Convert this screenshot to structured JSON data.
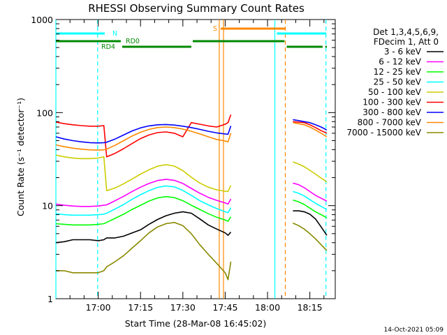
{
  "chart_data": {
    "type": "line",
    "title": "RHESSI Observing Summary Count Rates",
    "xlabel": "Start Time (28-Mar-08 16:45:02)",
    "ylabel": "Count Rate (s⁻¹ detector⁻¹)",
    "xlim_minutes": [
      0,
      99
    ],
    "ylim": [
      1,
      1000
    ],
    "y_scale": "log",
    "grid": false,
    "y_ticks": [
      {
        "value": 1,
        "label": "1"
      },
      {
        "value": 10,
        "label": "10"
      },
      {
        "value": 100,
        "label": "100"
      },
      {
        "value": 1000,
        "label": "1000"
      }
    ],
    "x_ticks": [
      {
        "minute": 15,
        "label": "17:00"
      },
      {
        "minute": 30,
        "label": "17:15"
      },
      {
        "minute": 45,
        "label": "17:30"
      },
      {
        "minute": 60,
        "label": "17:45"
      },
      {
        "minute": 75,
        "label": "18:00"
      },
      {
        "minute": 90,
        "label": "18:15"
      }
    ],
    "legend_placement": "right",
    "legend_header": [
      "Det 1,3,4,5,6,9,",
      "FDecim 1, Att 0"
    ],
    "series": [
      {
        "name": "3 - 6 keV",
        "color": "#000000",
        "values": [
          [
            0,
            4
          ],
          [
            3,
            4.1
          ],
          [
            6,
            4.3
          ],
          [
            9,
            4.3
          ],
          [
            12,
            4.3
          ],
          [
            15,
            4.2
          ],
          [
            17,
            4.3
          ],
          [
            18,
            4.5
          ],
          [
            21,
            4.5
          ],
          [
            24,
            4.7
          ],
          [
            27,
            5.1
          ],
          [
            30,
            5.5
          ],
          [
            33,
            6.3
          ],
          [
            36,
            7.1
          ],
          [
            39,
            7.8
          ],
          [
            42,
            8.3
          ],
          [
            45,
            8.6
          ],
          [
            48,
            8.3
          ],
          [
            51,
            7.2
          ],
          [
            54,
            6.2
          ],
          [
            57,
            5.6
          ],
          [
            60,
            5.1
          ],
          [
            61,
            4.8
          ],
          [
            62,
            5.2
          ],
          [
            84,
            8.8
          ],
          [
            86,
            8.8
          ],
          [
            88,
            8.6
          ],
          [
            90,
            8.1
          ],
          [
            92,
            7.2
          ],
          [
            94,
            5.9
          ],
          [
            96,
            4.8
          ]
        ]
      },
      {
        "name": "6 - 12 keV",
        "color": "#ff00ff",
        "values": [
          [
            0,
            10.4
          ],
          [
            3,
            10.1
          ],
          [
            6,
            9.9
          ],
          [
            9,
            9.8
          ],
          [
            12,
            9.8
          ],
          [
            15,
            9.9
          ],
          [
            17,
            10.1
          ],
          [
            18,
            10.2
          ],
          [
            21,
            11.3
          ],
          [
            24,
            12.6
          ],
          [
            27,
            14.2
          ],
          [
            30,
            15.8
          ],
          [
            33,
            17.3
          ],
          [
            36,
            18.6
          ],
          [
            39,
            19.2
          ],
          [
            42,
            18.7
          ],
          [
            45,
            17.3
          ],
          [
            48,
            15.3
          ],
          [
            51,
            13.6
          ],
          [
            54,
            12.3
          ],
          [
            57,
            11.4
          ],
          [
            60,
            10.7
          ],
          [
            61,
            10.4
          ],
          [
            62,
            11.8
          ],
          [
            84,
            17.5
          ],
          [
            86,
            16.8
          ],
          [
            88,
            15.6
          ],
          [
            90,
            14.2
          ],
          [
            92,
            12.9
          ],
          [
            94,
            12.0
          ],
          [
            96,
            11.2
          ]
        ]
      },
      {
        "name": "12 - 25 keV",
        "color": "#00ff00",
        "values": [
          [
            0,
            6.4
          ],
          [
            3,
            6.3
          ],
          [
            6,
            6.2
          ],
          [
            9,
            6.2
          ],
          [
            12,
            6.2
          ],
          [
            15,
            6.3
          ],
          [
            17,
            6.4
          ],
          [
            18,
            6.6
          ],
          [
            21,
            7.3
          ],
          [
            24,
            8.1
          ],
          [
            27,
            9.1
          ],
          [
            30,
            10.1
          ],
          [
            33,
            11.2
          ],
          [
            36,
            12.1
          ],
          [
            39,
            12.5
          ],
          [
            42,
            12.2
          ],
          [
            45,
            11.3
          ],
          [
            48,
            10.1
          ],
          [
            51,
            9.1
          ],
          [
            54,
            8.2
          ],
          [
            57,
            7.5
          ],
          [
            60,
            7.0
          ],
          [
            61,
            6.8
          ],
          [
            62,
            7.6
          ],
          [
            84,
            11.5
          ],
          [
            86,
            11.0
          ],
          [
            88,
            10.3
          ],
          [
            90,
            9.4
          ],
          [
            92,
            8.6
          ],
          [
            94,
            8.0
          ],
          [
            96,
            7.4
          ]
        ]
      },
      {
        "name": "25 - 50 keV",
        "color": "#00ffff",
        "values": [
          [
            0,
            8.2
          ],
          [
            3,
            8.0
          ],
          [
            6,
            7.9
          ],
          [
            9,
            7.9
          ],
          [
            12,
            7.9
          ],
          [
            15,
            8.0
          ],
          [
            17,
            8.1
          ],
          [
            18,
            8.3
          ],
          [
            21,
            9.2
          ],
          [
            24,
            10.3
          ],
          [
            27,
            11.7
          ],
          [
            30,
            13.1
          ],
          [
            33,
            14.5
          ],
          [
            36,
            15.7
          ],
          [
            39,
            16.3
          ],
          [
            42,
            15.9
          ],
          [
            45,
            14.6
          ],
          [
            48,
            12.9
          ],
          [
            51,
            11.3
          ],
          [
            54,
            10.2
          ],
          [
            57,
            9.3
          ],
          [
            60,
            8.6
          ],
          [
            61,
            8.4
          ],
          [
            62,
            9.5
          ],
          [
            84,
            14.2
          ],
          [
            86,
            13.6
          ],
          [
            88,
            12.7
          ],
          [
            90,
            11.6
          ],
          [
            92,
            10.6
          ],
          [
            94,
            9.8
          ],
          [
            96,
            9.1
          ]
        ]
      },
      {
        "name": "50 - 100 keV",
        "color": "#cccc00",
        "values": [
          [
            0,
            35
          ],
          [
            3,
            33.5
          ],
          [
            6,
            32.5
          ],
          [
            9,
            32
          ],
          [
            12,
            32
          ],
          [
            15,
            32.5
          ],
          [
            17,
            33.5
          ],
          [
            18,
            14.5
          ],
          [
            21,
            15.5
          ],
          [
            24,
            17.2
          ],
          [
            27,
            19.3
          ],
          [
            30,
            21.8
          ],
          [
            33,
            24.3
          ],
          [
            36,
            26.5
          ],
          [
            39,
            27.6
          ],
          [
            42,
            26.6
          ],
          [
            45,
            23.8
          ],
          [
            48,
            20.2
          ],
          [
            51,
            17.5
          ],
          [
            54,
            15.8
          ],
          [
            57,
            14.8
          ],
          [
            60,
            14.3
          ],
          [
            61,
            14.2
          ],
          [
            62,
            16.5
          ],
          [
            84,
            29.5
          ],
          [
            86,
            28.0
          ],
          [
            88,
            26.2
          ],
          [
            90,
            24.0
          ],
          [
            92,
            21.8
          ],
          [
            94,
            19.8
          ],
          [
            96,
            18.0
          ]
        ]
      },
      {
        "name": "100 - 300 keV",
        "color": "#ff0000",
        "values": [
          [
            0,
            79
          ],
          [
            3,
            76
          ],
          [
            6,
            74
          ],
          [
            9,
            72.5
          ],
          [
            12,
            71.5
          ],
          [
            15,
            71.5
          ],
          [
            17,
            72.5
          ],
          [
            18,
            33.5
          ],
          [
            21,
            36.5
          ],
          [
            24,
            41
          ],
          [
            27,
            46.5
          ],
          [
            30,
            52.5
          ],
          [
            33,
            57.5
          ],
          [
            36,
            61
          ],
          [
            39,
            62
          ],
          [
            42,
            60
          ],
          [
            45,
            55
          ],
          [
            48,
            78
          ],
          [
            51,
            75
          ],
          [
            54,
            72
          ],
          [
            57,
            70
          ],
          [
            60,
            75
          ],
          [
            61,
            78
          ],
          [
            62,
            95
          ],
          [
            84,
            80
          ],
          [
            86,
            79
          ],
          [
            88,
            78
          ],
          [
            90,
            74
          ],
          [
            92,
            69
          ],
          [
            94,
            64
          ],
          [
            96,
            60
          ]
        ]
      },
      {
        "name": "300 - 800 keV",
        "color": "#0000ff",
        "values": [
          [
            0,
            55
          ],
          [
            3,
            52
          ],
          [
            6,
            50
          ],
          [
            9,
            48.5
          ],
          [
            12,
            47.5
          ],
          [
            15,
            47.2
          ],
          [
            17,
            47.5
          ],
          [
            18,
            48
          ],
          [
            21,
            52
          ],
          [
            24,
            57.5
          ],
          [
            27,
            63.5
          ],
          [
            30,
            68.5
          ],
          [
            33,
            72
          ],
          [
            36,
            74
          ],
          [
            39,
            74.5
          ],
          [
            42,
            73.5
          ],
          [
            45,
            71.5
          ],
          [
            48,
            69
          ],
          [
            51,
            66
          ],
          [
            54,
            63
          ],
          [
            57,
            60.5
          ],
          [
            60,
            59
          ],
          [
            61,
            58.5
          ],
          [
            62,
            72
          ],
          [
            84,
            84
          ],
          [
            86,
            82
          ],
          [
            88,
            80
          ],
          [
            90,
            78
          ],
          [
            92,
            74
          ],
          [
            94,
            70
          ],
          [
            96,
            65
          ]
        ]
      },
      {
        "name": "800 - 7000 keV",
        "color": "#ff8800",
        "values": [
          [
            0,
            45
          ],
          [
            3,
            43
          ],
          [
            6,
            41.5
          ],
          [
            9,
            40.5
          ],
          [
            12,
            39.8
          ],
          [
            15,
            39.5
          ],
          [
            17,
            39.8
          ],
          [
            18,
            40.5
          ],
          [
            21,
            44.5
          ],
          [
            24,
            50
          ],
          [
            27,
            56
          ],
          [
            30,
            61.5
          ],
          [
            33,
            66
          ],
          [
            36,
            69
          ],
          [
            39,
            70
          ],
          [
            42,
            69
          ],
          [
            45,
            66.5
          ],
          [
            48,
            63
          ],
          [
            51,
            59
          ],
          [
            54,
            55
          ],
          [
            57,
            51.5
          ],
          [
            60,
            49.5
          ],
          [
            61,
            48.5
          ],
          [
            62,
            60
          ],
          [
            84,
            78
          ],
          [
            86,
            76
          ],
          [
            88,
            74
          ],
          [
            90,
            70
          ],
          [
            92,
            65
          ],
          [
            94,
            60
          ],
          [
            96,
            55
          ]
        ]
      },
      {
        "name": "7000 - 15000 keV",
        "color": "#888800",
        "values": [
          [
            0,
            2.0
          ],
          [
            3,
            2.0
          ],
          [
            6,
            1.9
          ],
          [
            9,
            1.9
          ],
          [
            12,
            1.9
          ],
          [
            15,
            1.9
          ],
          [
            17,
            2.0
          ],
          [
            18,
            2.2
          ],
          [
            21,
            2.5
          ],
          [
            24,
            2.9
          ],
          [
            27,
            3.5
          ],
          [
            30,
            4.2
          ],
          [
            33,
            5.1
          ],
          [
            36,
            5.9
          ],
          [
            39,
            6.4
          ],
          [
            42,
            6.6
          ],
          [
            45,
            6.1
          ],
          [
            48,
            5.0
          ],
          [
            51,
            3.8
          ],
          [
            54,
            3.0
          ],
          [
            57,
            2.4
          ],
          [
            60,
            1.9
          ],
          [
            61,
            1.6
          ],
          [
            62,
            2.5
          ],
          [
            84,
            6.5
          ],
          [
            86,
            6.1
          ],
          [
            88,
            5.6
          ],
          [
            90,
            5.0
          ],
          [
            92,
            4.4
          ],
          [
            94,
            3.8
          ],
          [
            96,
            3.3
          ]
        ]
      }
    ],
    "vertical_markers": [
      {
        "minute": 14.8,
        "color": "#00ffff",
        "style": "dashed"
      },
      {
        "minute": 0,
        "color": "#00ffff",
        "style": "solid"
      },
      {
        "minute": 77.6,
        "color": "#00ffff",
        "style": "solid"
      },
      {
        "minute": 95.7,
        "color": "#00ffff",
        "style": "dashed"
      },
      {
        "minute": 57.9,
        "color": "#ff8800",
        "style": "solid"
      },
      {
        "minute": 59.4,
        "color": "#ff8800",
        "style": "solid"
      },
      {
        "minute": 81.3,
        "color": "#ff8800",
        "style": "dashed"
      }
    ],
    "flag_bars": [
      {
        "label": "N",
        "color": "#00ffff",
        "segments": [
          [
            0,
            17.3
          ],
          [
            78.3,
            95.8
          ]
        ]
      },
      {
        "label": "S",
        "color": "#ff8800",
        "segments": [
          [
            58.4,
            81.2
          ]
        ]
      },
      {
        "label": "RD0",
        "color": "#008800",
        "segments": [
          [
            0,
            23
          ],
          [
            48.5,
            81
          ]
        ]
      },
      {
        "label": "RD4",
        "color": "#008800",
        "segments": [
          [
            23.5,
            48
          ],
          [
            81.8,
            94.5
          ],
          [
            95.5,
            96
          ]
        ]
      }
    ],
    "footer_timestamp": "14-Oct-2021 05:09"
  }
}
